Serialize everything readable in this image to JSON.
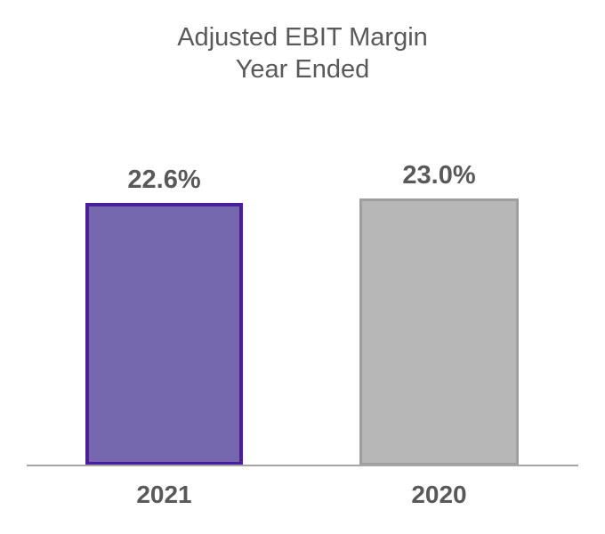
{
  "title": {
    "line1": "Adjusted EBIT Margin",
    "line2": "Year Ended"
  },
  "chart_data": {
    "type": "bar",
    "title": "Adjusted EBIT Margin Year Ended",
    "xlabel": "",
    "ylabel": "",
    "categories": [
      "2021",
      "2020"
    ],
    "values": [
      22.6,
      23.0
    ],
    "value_labels": [
      "22.6%",
      "23.0%"
    ],
    "unit": "%",
    "ylim": [
      0,
      23.0
    ],
    "grid": false,
    "legend": false,
    "y_axis_visible": false,
    "bar_styles": [
      {
        "fill": "#7668AE",
        "border": "#4A1F9C",
        "border_width": 4
      },
      {
        "fill": "#B7B7B7",
        "border": "#9E9E9E",
        "border_width": 3
      }
    ],
    "axis_line_color": "#A6A6A6",
    "text_color": "#595959",
    "background_color": "#FFFFFF"
  }
}
